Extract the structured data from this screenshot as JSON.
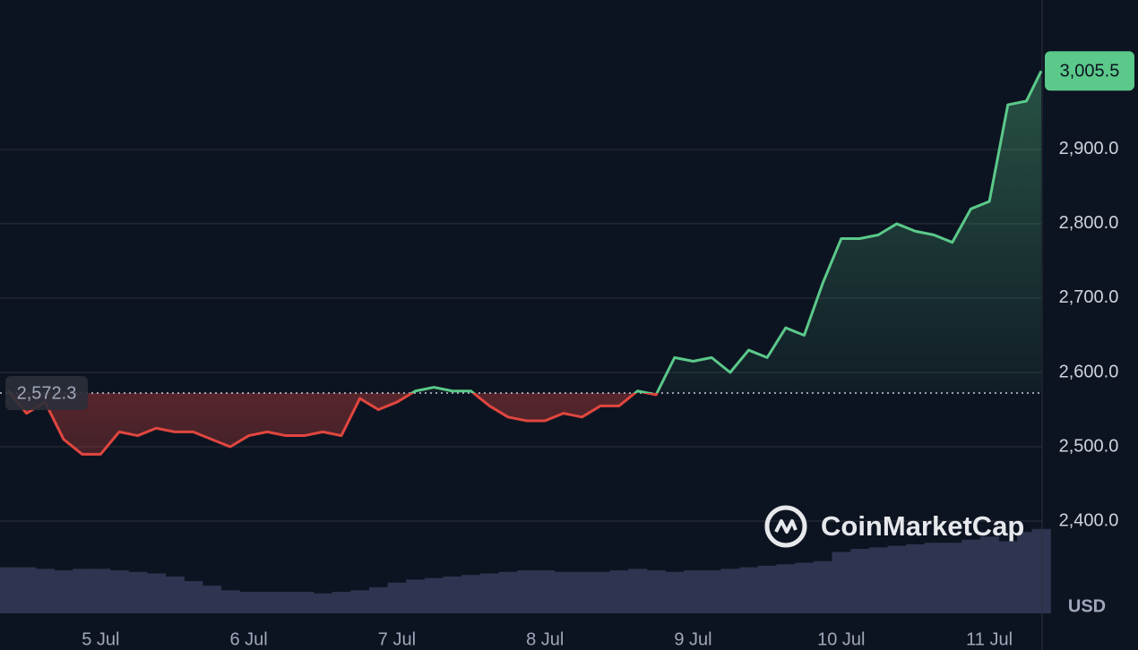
{
  "chart_data": {
    "type": "line",
    "categories": [
      null,
      null,
      null,
      null,
      null,
      "5 Jul",
      null,
      null,
      null,
      null,
      null,
      null,
      null,
      "6 Jul",
      null,
      null,
      null,
      null,
      null,
      null,
      null,
      "7 Jul",
      null,
      null,
      null,
      null,
      null,
      null,
      null,
      "8 Jul",
      null,
      null,
      null,
      null,
      null,
      null,
      null,
      "9 Jul",
      null,
      null,
      null,
      null,
      null,
      null,
      null,
      "10 Jul",
      null,
      null,
      null,
      null,
      null,
      null,
      null,
      "11 Jul",
      null,
      null,
      null
    ],
    "series": [
      {
        "values": [
          2575,
          2545,
          2560,
          2510,
          2490,
          2490,
          2520,
          2515,
          2525,
          2520,
          2520,
          2510,
          2500,
          2515,
          2520,
          2515,
          2515,
          2520,
          2515,
          2565,
          2550,
          2560,
          2575,
          2580,
          2575,
          2575,
          2555,
          2540,
          2535,
          2535,
          2545,
          2540,
          2555,
          2555,
          2575,
          2570,
          2620,
          2615,
          2620,
          2600,
          2630,
          2620,
          2660,
          2650,
          2720,
          2780,
          2780,
          2785,
          2800,
          2790,
          2785,
          2775,
          2820,
          2830,
          2960,
          2965,
          3005.5
        ],
        "value_labels": {
          "56": "3,005.5"
        },
        "color_up": "#5bc98a",
        "color_down": "#e0463f"
      },
      {
        "axis": "y2",
        "color": "#2d3550",
        "values": [
          30,
          30,
          29,
          28,
          29,
          29,
          28,
          27,
          26,
          24,
          21,
          18,
          15,
          14,
          14,
          14,
          14,
          13,
          14,
          15,
          17,
          20,
          22,
          23,
          24,
          25,
          26,
          27,
          28,
          28,
          27,
          27,
          27,
          28,
          29,
          28,
          27,
          28,
          28,
          29,
          30,
          31,
          32,
          33,
          34,
          40,
          42,
          43,
          44,
          45,
          46,
          46,
          48,
          50,
          47,
          53,
          55
        ]
      }
    ],
    "baseline": 2572.3,
    "baseline_label": "2,572.3",
    "ylim": [
      2276,
      3101
    ],
    "y2lim": [
      0,
      400
    ],
    "yticks": [
      {
        "value": 2400,
        "label": "2,400.0"
      },
      {
        "value": 2500,
        "label": "2,500.0"
      },
      {
        "value": 2600,
        "label": "2,600.0"
      },
      {
        "value": 2700,
        "label": "2,700.0"
      },
      {
        "value": 2800,
        "label": "2,800.0"
      },
      {
        "value": 2900,
        "label": "2,900.0"
      }
    ],
    "grid": true,
    "currency": "USD",
    "watermark": "CoinMarketCap"
  }
}
